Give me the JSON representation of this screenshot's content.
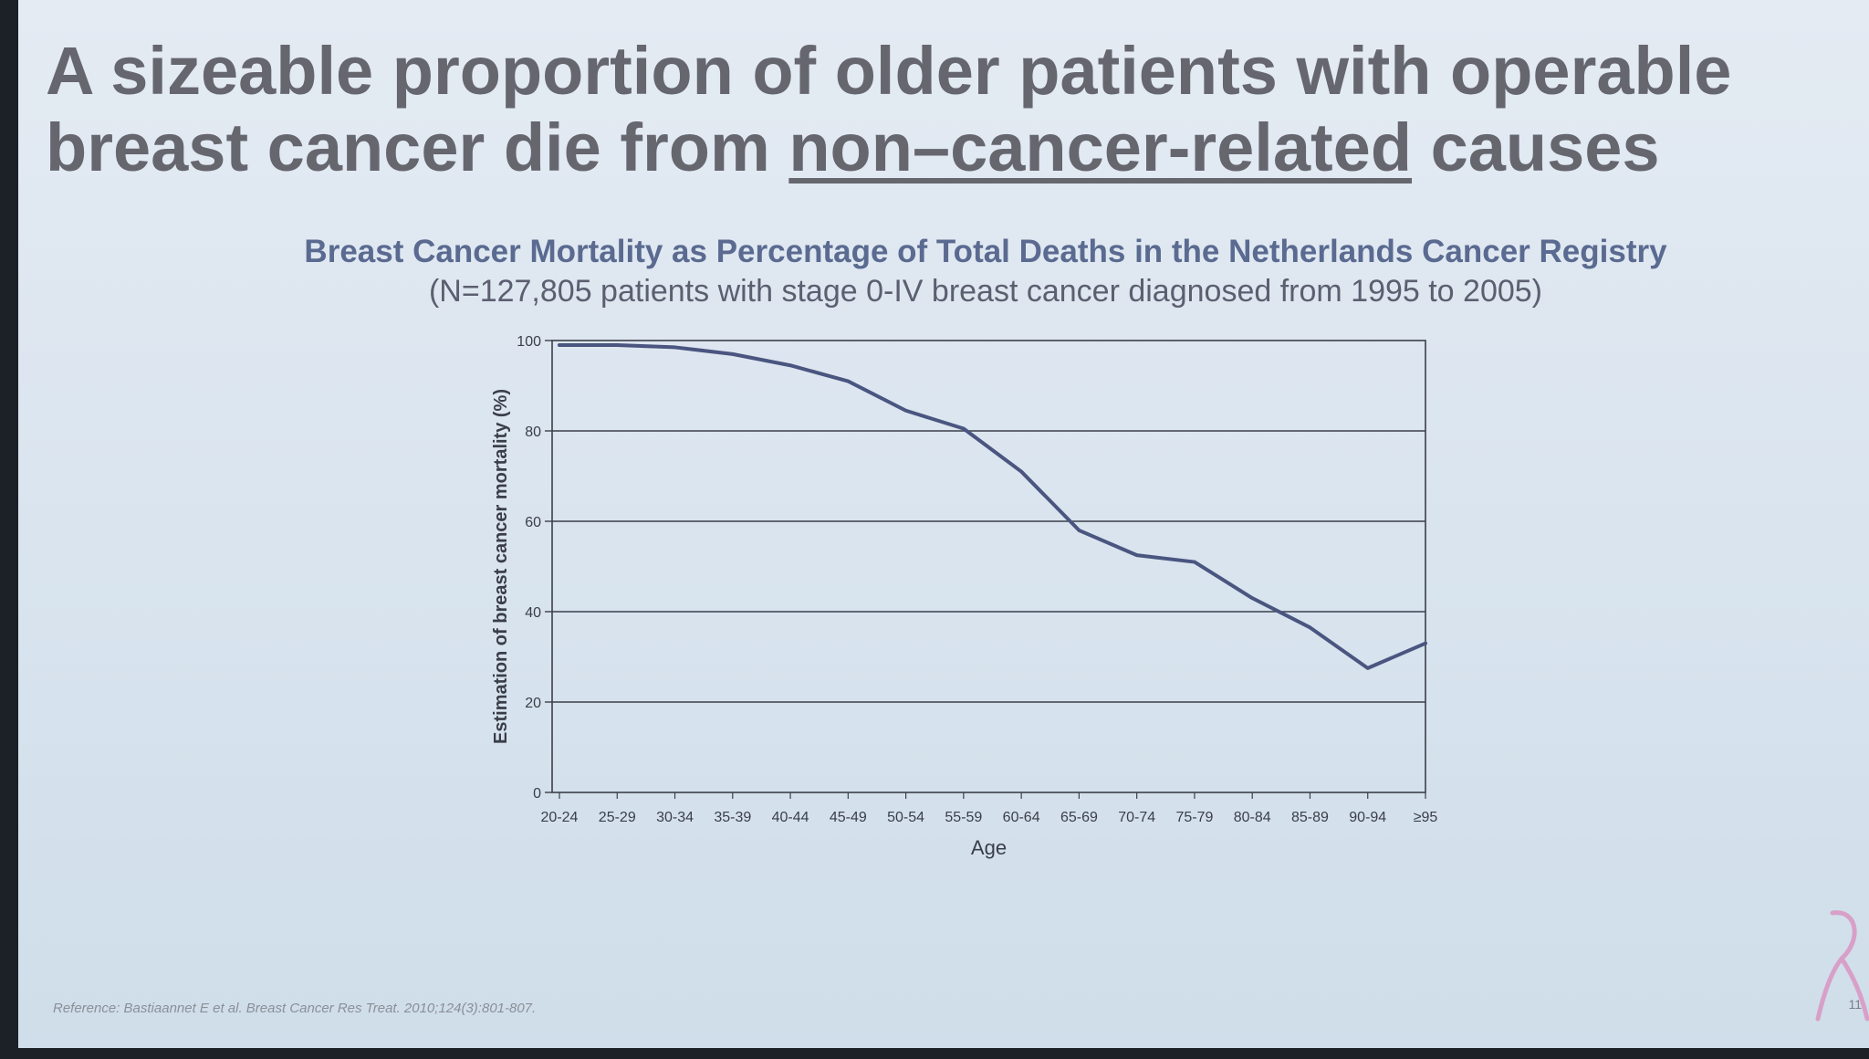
{
  "slide": {
    "title_part1": "A sizeable proportion of older patients with operable breast cancer die from ",
    "title_underlined": "non–cancer-related",
    "title_part2": " causes",
    "reference": "Reference: Bastiaannet E et al. Breast Cancer Res Treat. 2010;124(3):801-807.",
    "page_number": "11"
  },
  "chart_data": {
    "type": "line",
    "title": "Breast Cancer Mortality as Percentage of Total Deaths in the Netherlands Cancer Registry",
    "subtitle": "(N=127,805 patients with stage 0-IV breast cancer diagnosed from 1995 to 2005)",
    "xlabel": "Age",
    "ylabel": "Estimation of breast cancer mortality (%)",
    "ylim": [
      0,
      100
    ],
    "yticks": [
      0,
      20,
      40,
      60,
      80,
      100
    ],
    "grid": true,
    "categories": [
      "20-24",
      "25-29",
      "30-34",
      "35-39",
      "40-44",
      "45-49",
      "50-54",
      "55-59",
      "60-64",
      "65-69",
      "70-74",
      "75-79",
      "80-84",
      "85-89",
      "90-94",
      "≥95"
    ],
    "series": [
      {
        "values": [
          99,
          99,
          98.5,
          97,
          94.5,
          91,
          84.5,
          80.5,
          71,
          58,
          52.5,
          51,
          43,
          36.5,
          27.5,
          33
        ]
      }
    ],
    "line_color": "#4a5580",
    "grid_color": "#3b3f4a"
  }
}
